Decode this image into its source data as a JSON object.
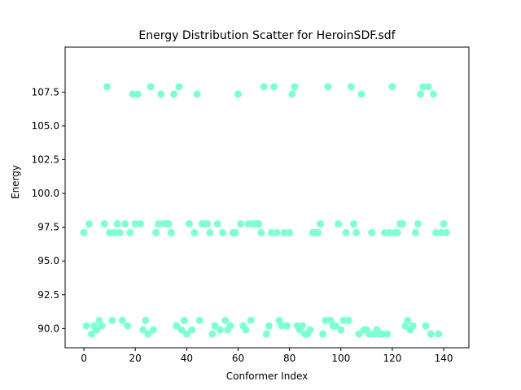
{
  "chart_data": {
    "type": "scatter",
    "title": "Energy Distribution Scatter for HeroinSDF.sdf",
    "x_label": "Conformer Index",
    "y_label": "Energy",
    "color": "#7fffd4",
    "x": [
      0,
      1,
      2,
      3,
      4,
      5,
      6,
      7,
      8,
      9,
      10,
      11,
      12,
      13,
      14,
      15,
      16,
      17,
      18,
      19,
      20,
      21,
      22,
      23,
      24,
      25,
      26,
      27,
      28,
      29,
      30,
      31,
      32,
      33,
      34,
      35,
      36,
      37,
      38,
      39,
      40,
      41,
      42,
      43,
      44,
      45,
      46,
      47,
      48,
      49,
      50,
      51,
      52,
      53,
      54,
      55,
      56,
      57,
      58,
      59,
      60,
      61,
      62,
      63,
      64,
      65,
      66,
      67,
      68,
      69,
      70,
      71,
      72,
      73,
      74,
      75,
      76,
      77,
      78,
      79,
      80,
      81,
      82,
      83,
      84,
      85,
      86,
      87,
      88,
      89,
      90,
      91,
      92,
      93,
      94,
      95,
      96,
      97,
      98,
      99,
      100,
      101,
      102,
      103,
      104,
      105,
      106,
      107,
      108,
      109,
      110,
      111,
      112,
      113,
      114,
      115,
      116,
      117,
      118,
      119,
      120,
      121,
      122,
      123,
      124,
      125,
      126,
      127,
      128,
      129,
      130,
      131,
      132,
      133,
      134,
      135,
      136,
      137,
      138,
      139,
      140,
      141
    ],
    "values": [
      97.1,
      90.2,
      97.75,
      89.6,
      90.2,
      89.9,
      90.6,
      90.2,
      97.75,
      107.9,
      97.1,
      90.6,
      97.1,
      97.75,
      97.1,
      90.6,
      97.75,
      90.2,
      97.1,
      107.35,
      97.75,
      107.35,
      97.75,
      89.9,
      90.6,
      89.6,
      107.9,
      89.9,
      97.1,
      97.75,
      107.35,
      97.75,
      97.75,
      97.75,
      97.1,
      107.35,
      90.2,
      107.9,
      89.9,
      90.6,
      89.6,
      97.75,
      89.9,
      97.1,
      107.35,
      90.6,
      97.75,
      97.75,
      97.75,
      97.1,
      89.6,
      90.2,
      97.75,
      89.9,
      97.1,
      90.6,
      89.9,
      90.2,
      97.1,
      97.1,
      107.35,
      97.75,
      90.2,
      89.9,
      97.75,
      90.6,
      97.75,
      97.75,
      97.75,
      97.1,
      107.9,
      89.6,
      90.2,
      97.1,
      107.9,
      97.1,
      90.6,
      90.2,
      97.1,
      90.2,
      97.1,
      107.35,
      107.9,
      90.2,
      89.9,
      90.2,
      89.6,
      89.6,
      89.9,
      97.1,
      97.1,
      97.1,
      97.75,
      89.6,
      90.6,
      107.9,
      90.6,
      90.2,
      90.2,
      97.75,
      89.9,
      90.6,
      97.1,
      90.6,
      107.9,
      97.75,
      97.1,
      89.6,
      107.35,
      89.9,
      89.9,
      89.6,
      97.1,
      89.6,
      89.9,
      89.6,
      89.6,
      97.1,
      89.6,
      97.1,
      107.9,
      97.1,
      97.1,
      97.75,
      97.75,
      90.2,
      90.6,
      89.9,
      90.2,
      97.1,
      97.75,
      107.35,
      107.9,
      90.2,
      107.9,
      89.6,
      107.35,
      97.1,
      89.6,
      97.1,
      97.75,
      97.1
    ],
    "xlim": [
      -7.3,
      149.8
    ],
    "ylim": [
      88.58,
      110.83
    ],
    "xticks": [
      0,
      20,
      40,
      60,
      80,
      100,
      120,
      140
    ],
    "yticks": [
      {
        "value": 90,
        "label": "90.0"
      },
      {
        "value": 92.5,
        "label": "92.5"
      },
      {
        "value": 95,
        "label": "95.0"
      },
      97.5,
      {
        "value": 100,
        "label": "100.0"
      },
      102.5,
      {
        "value": 105,
        "label": "105.0"
      },
      107.5
    ]
  }
}
